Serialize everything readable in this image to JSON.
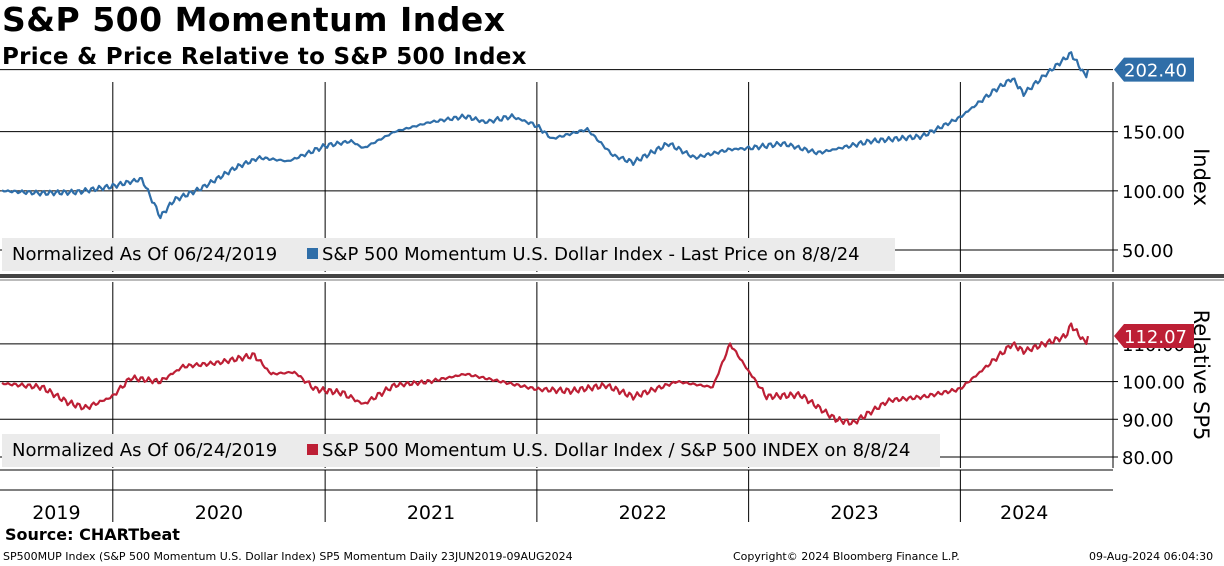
{
  "title": "S&P 500 Momentum Index",
  "subtitle": "Price & Price Relative to S&P 500 Index",
  "source": "Source: CHARTbeat",
  "footer": {
    "left": "SP500MUP Index (S&P 500 Momentum U.S. Dollar Index) SP5 Momentum  Daily 23JUN2019-09AUG2024",
    "center": "Copyright© 2024 Bloomberg Finance L.P.",
    "right": "09-Aug-2024 06:04:30"
  },
  "colors": {
    "price": "#2f6ea8",
    "relative": "#bd1f35",
    "grid": "#000000"
  },
  "chart_data": [
    {
      "type": "line",
      "panel": "top",
      "ylabel": "Index",
      "ylim": [
        50,
        230
      ],
      "yticks": [
        "50.00",
        "100.00",
        "150.00"
      ],
      "legend": "Normalized As Of 06/24/2019",
      "series": [
        {
          "name": "S&P 500 Momentum U.S. Dollar Index - Last Price on 8/8/24",
          "last_value_label": "202.40",
          "x": [
            "2019-06-24",
            "2019-09-01",
            "2019-11-01",
            "2020-01-01",
            "2020-02-20",
            "2020-03-23",
            "2020-04-15",
            "2020-06-01",
            "2020-08-01",
            "2020-09-10",
            "2020-10-30",
            "2021-01-01",
            "2021-02-15",
            "2021-03-08",
            "2021-05-01",
            "2021-07-01",
            "2021-09-01",
            "2021-10-04",
            "2021-11-19",
            "2022-01-01",
            "2022-01-27",
            "2022-03-29",
            "2022-05-12",
            "2022-06-16",
            "2022-08-16",
            "2022-09-30",
            "2022-11-30",
            "2023-01-01",
            "2023-03-01",
            "2023-05-01",
            "2023-07-31",
            "2023-10-27",
            "2023-12-31",
            "2024-02-29",
            "2024-03-31",
            "2024-04-19",
            "2024-05-31",
            "2024-07-10",
            "2024-08-05",
            "2024-08-08"
          ],
          "values": [
            100,
            98,
            99,
            104,
            110,
            78,
            92,
            102,
            120,
            128,
            125,
            138,
            142,
            136,
            150,
            158,
            163,
            158,
            163,
            155,
            144,
            152,
            130,
            124,
            140,
            128,
            135,
            136,
            140,
            132,
            142,
            146,
            162,
            185,
            195,
            182,
            200,
            216,
            196,
            202.4
          ]
        }
      ]
    },
    {
      "type": "line",
      "panel": "bottom",
      "ylabel": "Relative SP5",
      "ylim": [
        76,
        117
      ],
      "yticks": [
        "80.00",
        "90.00",
        "100.00",
        "110.00"
      ],
      "legend": "Normalized As Of 06/24/2019",
      "series": [
        {
          "name": "S&P 500 Momentum U.S. Dollar Index / S&P 500 INDEX on 8/8/24",
          "last_value_label": "112.07",
          "x": [
            "2019-06-24",
            "2019-09-01",
            "2019-10-15",
            "2019-11-15",
            "2019-12-31",
            "2020-02-01",
            "2020-03-23",
            "2020-05-01",
            "2020-07-01",
            "2020-09-01",
            "2020-09-30",
            "2020-11-09",
            "2020-12-15",
            "2021-01-31",
            "2021-03-08",
            "2021-04-30",
            "2021-06-30",
            "2021-08-31",
            "2021-10-31",
            "2021-12-31",
            "2022-02-28",
            "2022-04-30",
            "2022-06-16",
            "2022-08-31",
            "2022-10-31",
            "2022-11-30",
            "2022-12-31",
            "2023-02-01",
            "2023-03-31",
            "2023-05-31",
            "2023-06-30",
            "2023-08-31",
            "2023-10-31",
            "2023-12-31",
            "2024-01-31",
            "2024-03-31",
            "2024-04-19",
            "2024-06-30",
            "2024-07-10",
            "2024-08-05",
            "2024-08-08"
          ],
          "values": [
            99.5,
            98.5,
            94.5,
            93,
            96,
            101,
            100,
            104,
            105,
            107,
            102,
            102.5,
            98,
            97,
            94,
            99,
            100,
            102,
            100,
            98,
            97.5,
            99,
            96,
            100,
            98.5,
            110,
            103,
            96,
            96.5,
            90,
            89,
            95,
            96,
            98,
            102,
            110,
            108,
            112,
            115,
            110,
            112.07
          ]
        }
      ]
    }
  ],
  "x_axis": {
    "labels": [
      "2019",
      "2020",
      "2021",
      "2022",
      "2023",
      "2024"
    ]
  }
}
